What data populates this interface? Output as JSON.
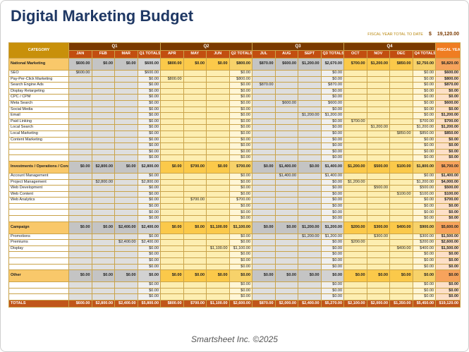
{
  "header": {
    "title": "Digital Marketing Budget",
    "fiscal_label": "FISCAL YEAR TOTAL TO DATE",
    "fiscal_currency": "$",
    "fiscal_value": "19,120.00"
  },
  "table": {
    "category_header": "CATEGORY",
    "quarters": [
      "Q1",
      "Q2",
      "Q3",
      "Q4"
    ],
    "fiscal_header": "FISCAL YEAR TOTALS",
    "columns": [
      "JAN",
      "FEB",
      "MAR",
      "Q1 TOTALS",
      "APR",
      "MAY",
      "JUN",
      "Q2 TOTALS",
      "JUL",
      "AUG",
      "SEPT",
      "Q3 TOTALS",
      "OCT",
      "NOV",
      "DEC",
      "Q4 TOTALS"
    ],
    "sections": [
      {
        "header": [
          "National Marketing",
          "$600.00",
          "$0.00",
          "$0.00",
          "$600.00",
          "$800.00",
          "$0.00",
          "$0.00",
          "$800.00",
          "$870.00",
          "$600.00",
          "$1,200.00",
          "$2,670.00",
          "$700.00",
          "$1,200.00",
          "$850.00",
          "$2,750.00",
          "$6,820.00"
        ],
        "items": [
          [
            "SEO",
            "$600.00",
            null,
            null,
            "$600.00",
            null,
            null,
            null,
            "$0.00",
            null,
            null,
            null,
            "$0.00",
            null,
            null,
            null,
            "$0.00",
            "$600.00"
          ],
          [
            "Pay-Per-Click Marketing",
            null,
            null,
            null,
            "$0.00",
            "$800.00",
            null,
            null,
            "$800.00",
            null,
            null,
            null,
            "$0.00",
            null,
            null,
            null,
            "$0.00",
            "$800.00"
          ],
          [
            "Search Engine Ads",
            null,
            null,
            null,
            "$0.00",
            null,
            null,
            null,
            "$0.00",
            "$870.00",
            null,
            null,
            "$870.00",
            null,
            null,
            null,
            "$0.00",
            "$870.00"
          ],
          [
            "Display Retargeting",
            null,
            null,
            null,
            "$0.00",
            null,
            null,
            null,
            "$0.00",
            null,
            null,
            null,
            "$0.00",
            null,
            null,
            null,
            "$0.00",
            "$0.00"
          ],
          [
            "CPC / CPM",
            null,
            null,
            null,
            "$0.00",
            null,
            null,
            null,
            "$0.00",
            null,
            null,
            null,
            "$0.00",
            null,
            null,
            null,
            "$0.00",
            "$0.00"
          ],
          [
            "Meta Search",
            null,
            null,
            null,
            "$0.00",
            null,
            null,
            null,
            "$0.00",
            null,
            "$600.00",
            null,
            "$600.00",
            null,
            null,
            null,
            "$0.00",
            "$600.00"
          ],
          [
            "Social Media",
            null,
            null,
            null,
            "$0.00",
            null,
            null,
            null,
            "$0.00",
            null,
            null,
            null,
            "$0.00",
            null,
            null,
            null,
            "$0.00",
            "$0.00"
          ],
          [
            "Email",
            null,
            null,
            null,
            "$0.00",
            null,
            null,
            null,
            "$0.00",
            null,
            null,
            "$1,200.00",
            "$1,200.00",
            null,
            null,
            null,
            "$0.00",
            "$1,200.00"
          ],
          [
            "Paid Linking",
            null,
            null,
            null,
            "$0.00",
            null,
            null,
            null,
            "$0.00",
            null,
            null,
            null,
            "$0.00",
            "$700.00",
            null,
            null,
            "$700.00",
            "$700.00"
          ],
          [
            "Local Search",
            null,
            null,
            null,
            "$0.00",
            null,
            null,
            null,
            "$0.00",
            null,
            null,
            null,
            "$0.00",
            null,
            "$1,200.00",
            null,
            "$1,200.00",
            "$1,200.00"
          ],
          [
            "Local Marketing",
            null,
            null,
            null,
            "$0.00",
            null,
            null,
            null,
            "$0.00",
            null,
            null,
            null,
            "$0.00",
            null,
            null,
            "$850.00",
            "$850.00",
            "$850.00"
          ],
          [
            "Content Marketing",
            null,
            null,
            null,
            "$0.00",
            null,
            null,
            null,
            "$0.00",
            null,
            null,
            null,
            "$0.00",
            null,
            null,
            null,
            "$0.00",
            "$0.00"
          ],
          [
            null,
            null,
            null,
            null,
            "$0.00",
            null,
            null,
            null,
            "$0.00",
            null,
            null,
            null,
            "$0.00",
            null,
            null,
            null,
            "$0.00",
            "$0.00"
          ],
          [
            null,
            null,
            null,
            null,
            "$0.00",
            null,
            null,
            null,
            "$0.00",
            null,
            null,
            null,
            "$0.00",
            null,
            null,
            null,
            "$0.00",
            "$0.00"
          ],
          [
            null,
            null,
            null,
            null,
            "$0.00",
            null,
            null,
            null,
            "$0.00",
            null,
            null,
            null,
            "$0.00",
            null,
            null,
            null,
            "$0.00",
            "$0.00"
          ]
        ]
      },
      {
        "header": [
          "Investments / Operations / Consulting",
          "$0.00",
          "$2,800.00",
          "$0.00",
          "$2,800.00",
          "$0.00",
          "$700.00",
          "$0.00",
          "$700.00",
          "$0.00",
          "$1,400.00",
          "$0.00",
          "$1,400.00",
          "$1,200.00",
          "$500.00",
          "$100.00",
          "$1,800.00",
          "$6,700.00"
        ],
        "items": [
          [
            "Account Management",
            null,
            null,
            null,
            "$0.00",
            null,
            null,
            null,
            "$0.00",
            null,
            "$1,400.00",
            null,
            "$1,400.00",
            null,
            null,
            null,
            "$0.00",
            "$1,400.00"
          ],
          [
            "Project Management",
            null,
            "$2,800.00",
            null,
            "$2,800.00",
            null,
            null,
            null,
            "$0.00",
            null,
            null,
            null,
            "$0.00",
            "$1,200.00",
            null,
            null,
            "$1,200.00",
            "$4,000.00"
          ],
          [
            "Web Development",
            null,
            null,
            null,
            "$0.00",
            null,
            null,
            null,
            "$0.00",
            null,
            null,
            null,
            "$0.00",
            null,
            "$500.00",
            null,
            "$500.00",
            "$500.00"
          ],
          [
            "Web Content",
            null,
            null,
            null,
            "$0.00",
            null,
            null,
            null,
            "$0.00",
            null,
            null,
            null,
            "$0.00",
            null,
            null,
            "$100.00",
            "$100.00",
            "$100.00"
          ],
          [
            "Web Analytics",
            null,
            null,
            null,
            "$0.00",
            null,
            "$700.00",
            null,
            "$700.00",
            null,
            null,
            null,
            "$0.00",
            null,
            null,
            null,
            "$0.00",
            "$700.00"
          ],
          [
            null,
            null,
            null,
            null,
            "$0.00",
            null,
            null,
            null,
            "$0.00",
            null,
            null,
            null,
            "$0.00",
            null,
            null,
            null,
            "$0.00",
            "$0.00"
          ],
          [
            null,
            null,
            null,
            null,
            "$0.00",
            null,
            null,
            null,
            "$0.00",
            null,
            null,
            null,
            "$0.00",
            null,
            null,
            null,
            "$0.00",
            "$0.00"
          ],
          [
            null,
            null,
            null,
            null,
            "$0.00",
            null,
            null,
            null,
            "$0.00",
            null,
            null,
            null,
            "$0.00",
            null,
            null,
            null,
            "$0.00",
            "$0.00"
          ]
        ]
      },
      {
        "header": [
          "Campaign",
          "$0.00",
          "$0.00",
          "$2,400.00",
          "$2,400.00",
          "$0.00",
          "$0.00",
          "$1,100.00",
          "$1,100.00",
          "$0.00",
          "$0.00",
          "$1,200.00",
          "$1,200.00",
          "$200.00",
          "$300.00",
          "$400.00",
          "$900.00",
          "$5,600.00"
        ],
        "items": [
          [
            "Promotions",
            null,
            null,
            null,
            "$0.00",
            null,
            null,
            null,
            "$0.00",
            null,
            null,
            "$1,200.00",
            "$1,200.00",
            null,
            "$300.00",
            null,
            "$300.00",
            "$1,500.00"
          ],
          [
            "Premiums",
            null,
            null,
            "$2,400.00",
            "$2,400.00",
            null,
            null,
            null,
            "$0.00",
            null,
            null,
            null,
            "$0.00",
            "$200.00",
            null,
            null,
            "$200.00",
            "$2,600.00"
          ],
          [
            "Display",
            null,
            null,
            null,
            "$0.00",
            null,
            null,
            "$1,100.00",
            "$1,100.00",
            null,
            null,
            null,
            "$0.00",
            null,
            null,
            "$400.00",
            "$400.00",
            "$1,500.00"
          ],
          [
            null,
            null,
            null,
            null,
            "$0.00",
            null,
            null,
            null,
            "$0.00",
            null,
            null,
            null,
            "$0.00",
            null,
            null,
            null,
            "$0.00",
            "$0.00"
          ],
          [
            null,
            null,
            null,
            null,
            "$0.00",
            null,
            null,
            null,
            "$0.00",
            null,
            null,
            null,
            "$0.00",
            null,
            null,
            null,
            "$0.00",
            "$0.00"
          ],
          [
            null,
            null,
            null,
            null,
            "$0.00",
            null,
            null,
            null,
            "$0.00",
            null,
            null,
            null,
            "$0.00",
            null,
            null,
            null,
            "$0.00",
            "$0.00"
          ]
        ]
      },
      {
        "header": [
          "Other",
          "$0.00",
          "$0.00",
          "$0.00",
          "$0.00",
          "$0.00",
          "$0.00",
          "$0.00",
          "$0.00",
          "$0.00",
          "$0.00",
          "$0.00",
          "$0.00",
          "$0.00",
          "$0.00",
          "$0.00",
          "$0.00",
          "$0.00"
        ],
        "items": [
          [
            null,
            null,
            null,
            null,
            "$0.00",
            null,
            null,
            null,
            "$0.00",
            null,
            null,
            null,
            "$0.00",
            null,
            null,
            null,
            "$0.00",
            "$0.00"
          ],
          [
            null,
            null,
            null,
            null,
            "$0.00",
            null,
            null,
            null,
            "$0.00",
            null,
            null,
            null,
            "$0.00",
            null,
            null,
            null,
            "$0.00",
            "$0.00"
          ],
          [
            null,
            null,
            null,
            null,
            "$0.00",
            null,
            null,
            null,
            "$0.00",
            null,
            null,
            null,
            "$0.00",
            null,
            null,
            null,
            "$0.00",
            "$0.00"
          ]
        ]
      }
    ],
    "totals": [
      "TOTALS",
      "$600.00",
      "$2,800.00",
      "$2,400.00",
      "$5,800.00",
      "$800.00",
      "$700.00",
      "$1,100.00",
      "$2,600.00",
      "$870.00",
      "$2,000.00",
      "$2,400.00",
      "$5,270.00",
      "$2,100.00",
      "$2,000.00",
      "$1,350.00",
      "$5,450.00",
      "$19,120.00"
    ]
  },
  "footer": "Smartsheet Inc. ©2025"
}
